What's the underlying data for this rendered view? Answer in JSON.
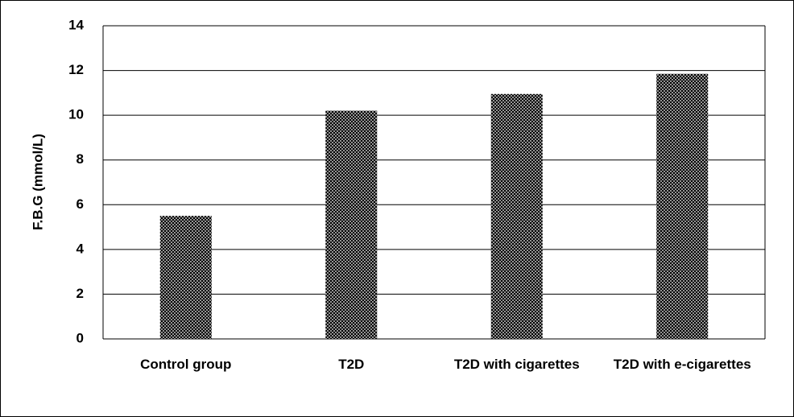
{
  "chart_data": {
    "type": "bar",
    "ylabel": "F.B.G (mmol/L)",
    "categories": [
      "Control group",
      "T2D",
      "T2D with cigarettes",
      "T2D with e-cigarettes"
    ],
    "values": [
      5.5,
      10.2,
      10.95,
      11.85
    ],
    "color": "#000000",
    "ylim": [
      0,
      14
    ],
    "yticks": [
      0,
      2,
      4,
      6,
      8,
      10,
      12,
      14
    ],
    "grid": true
  }
}
